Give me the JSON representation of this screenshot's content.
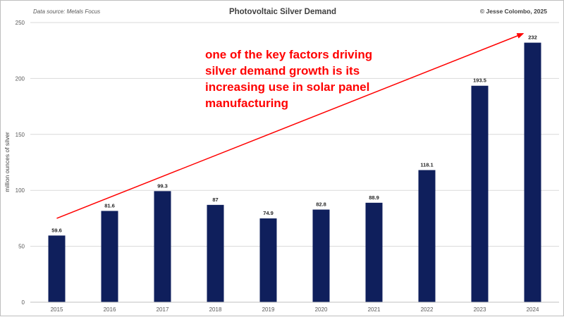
{
  "header": {
    "source": "Data source: Metals Focus",
    "copyright": "© Jesse Colombo, 2025"
  },
  "annotation": {
    "lines": [
      "one of the key factors driving",
      "silver demand growth is its",
      "increasing use in solar panel",
      "manufacturing"
    ],
    "color": "#ff0000"
  },
  "chart_data": {
    "type": "bar",
    "title": "Photovoltaic Silver Demand",
    "xlabel": "",
    "ylabel": "million ounces of silver",
    "categories": [
      "2015",
      "2016",
      "2017",
      "2018",
      "2019",
      "2020",
      "2021",
      "2022",
      "2023",
      "2024"
    ],
    "values": [
      59.6,
      81.6,
      99.3,
      87,
      74.9,
      82.8,
      88.9,
      118.1,
      193.5,
      232
    ],
    "data_labels": [
      "59.6",
      "81.6",
      "99.3",
      "87",
      "74.9",
      "82.8",
      "88.9",
      "118.1",
      "193.5",
      "232"
    ],
    "ylim": [
      0,
      250
    ],
    "yticks": [
      0,
      50,
      100,
      150,
      200,
      250
    ],
    "grid": true,
    "bar_color": "#0f1f5c",
    "trend_arrow": {
      "from": [
        "2015",
        75
      ],
      "to": [
        "2024",
        240
      ],
      "color": "#ff0000"
    }
  }
}
